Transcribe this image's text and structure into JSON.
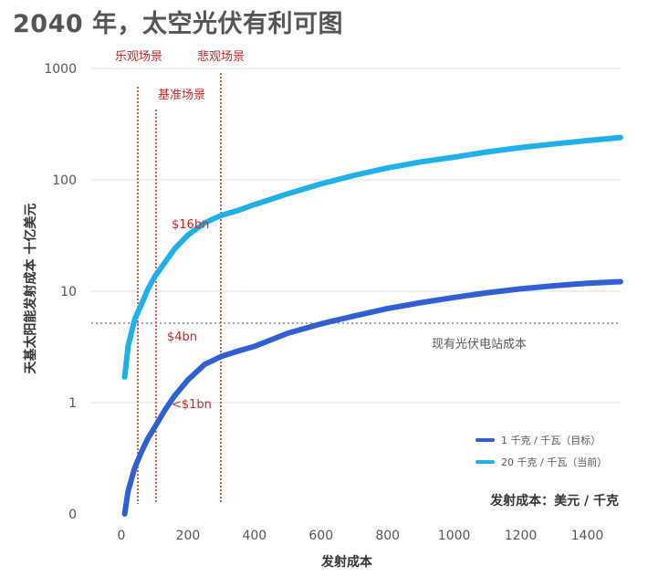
{
  "chart_data": {
    "type": "line",
    "title": "2040 年，太空光伏有利可图",
    "xlabel": "发射成本",
    "ylabel": "天基太阳能发射成本 十亿美元",
    "unit_note": "发射成本：美元 / 千克",
    "yscale": "log",
    "xlim": [
      -100,
      1500
    ],
    "x_ticks": [
      "0",
      "200",
      "400",
      "600",
      "800",
      "1000",
      "1200",
      "1400"
    ],
    "x_tick_values": [
      0,
      200,
      400,
      600,
      800,
      1000,
      1200,
      1400
    ],
    "y_ticks": [
      "0",
      "1",
      "10",
      "100",
      "1000"
    ],
    "grid": "horizontal",
    "legend_position": "bottom-right",
    "series": [
      {
        "name": "1 千克 / 千瓦（目标）",
        "color": "#2f5fd0",
        "x": [
          10,
          20,
          40,
          60,
          80,
          100,
          130,
          160,
          200,
          250,
          300,
          350,
          400,
          500,
          600,
          700,
          800,
          900,
          1000,
          1100,
          1200,
          1300,
          1400,
          1500
        ],
        "y": [
          0.1,
          0.16,
          0.26,
          0.36,
          0.48,
          0.6,
          0.85,
          1.15,
          1.6,
          2.2,
          2.6,
          2.9,
          3.2,
          4.2,
          5.1,
          6.0,
          7.0,
          7.9,
          8.8,
          9.7,
          10.5,
          11.2,
          11.8,
          12.2
        ]
      },
      {
        "name": "20 千克 / 千瓦（当前）",
        "color": "#1fb0e8",
        "x": [
          10,
          20,
          40,
          60,
          80,
          100,
          130,
          160,
          200,
          250,
          300,
          350,
          400,
          500,
          600,
          700,
          800,
          900,
          1000,
          1100,
          1200,
          1300,
          1400,
          1500
        ],
        "y": [
          1.7,
          3.2,
          5.6,
          7.6,
          10.5,
          13.5,
          18,
          24,
          32,
          41,
          48,
          53,
          60,
          75,
          92,
          110,
          128,
          145,
          160,
          178,
          195,
          210,
          225,
          240
        ]
      }
    ],
    "reference_line": {
      "y": 5,
      "label": "现有光伏电站成本"
    },
    "scenarios": [
      {
        "label": "乐观场景",
        "x": 55
      },
      {
        "label": "基准场景",
        "x": 115
      },
      {
        "label": "悲观场景",
        "x": 315
      }
    ],
    "annotations": [
      {
        "text": "$16bn",
        "x": 315,
        "y": 40
      },
      {
        "text": "$4bn",
        "x": 315,
        "y": 4
      },
      {
        "text": "<$1bn",
        "x": 115,
        "y": 1
      }
    ]
  },
  "colors": {
    "scenario_line": "#c62828",
    "reference_line": "#888888",
    "grid": "#dddddd",
    "text": "#555555"
  }
}
